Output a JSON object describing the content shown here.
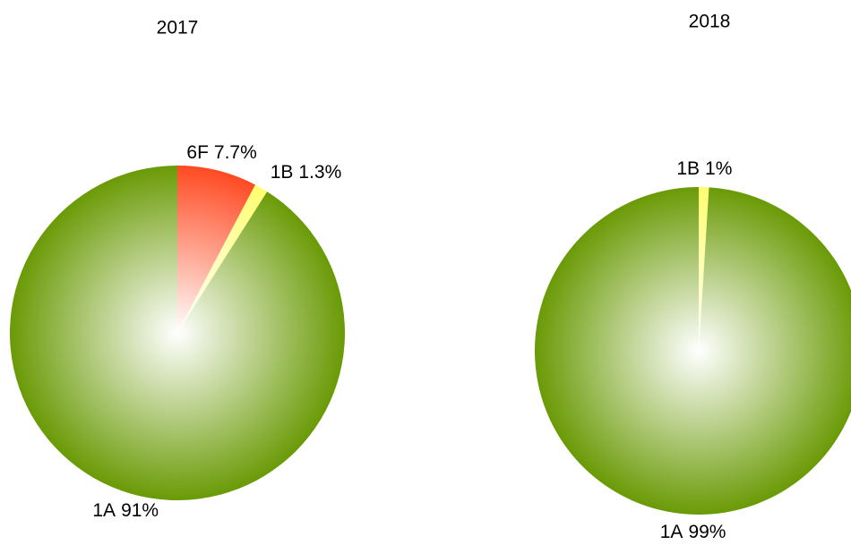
{
  "chart_data": [
    {
      "type": "pie",
      "title": "2017",
      "categories": [
        "6F",
        "1B",
        "1A"
      ],
      "values": [
        7.7,
        1.3,
        91
      ],
      "value_labels": [
        "7.7%",
        "1.3%",
        "91%"
      ],
      "colors": [
        "#ff4a22",
        "#ffff70",
        "#6a9a06"
      ]
    },
    {
      "type": "pie",
      "title": "2018",
      "categories": [
        "1B",
        "1A"
      ],
      "values": [
        1,
        99
      ],
      "value_labels": [
        "1%",
        "99%"
      ],
      "colors": [
        "#ffff70",
        "#6a9a06"
      ]
    }
  ]
}
